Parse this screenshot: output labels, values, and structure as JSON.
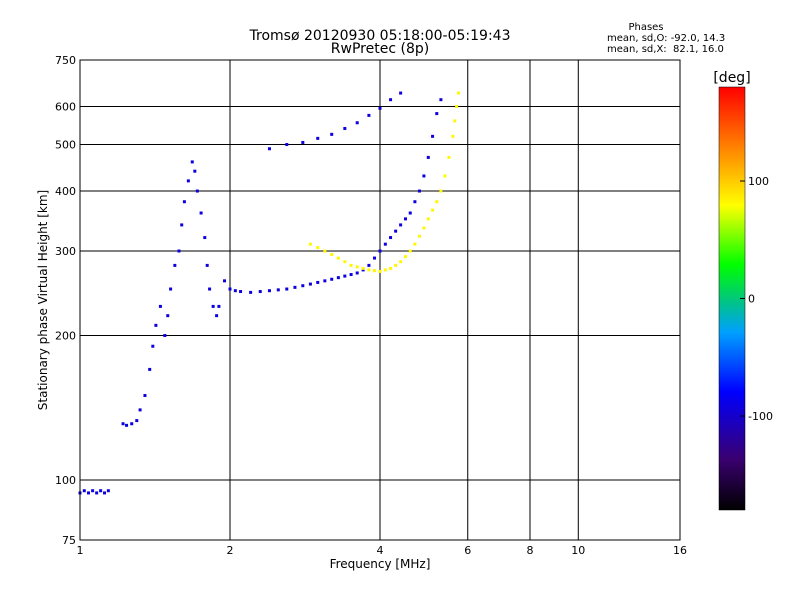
{
  "chart_data": {
    "type": "scatter",
    "title": "Tromsø 20120930 05:18:00-05:19:43",
    "subtitle": "RwPretec (8p)",
    "xlabel": "Frequency [MHz]",
    "ylabel": "Stationary phase Virtual Height [km]",
    "x_scale": "log",
    "y_scale": "log",
    "xlim": [
      1,
      16
    ],
    "ylim": [
      75,
      750
    ],
    "x_ticks": [
      1,
      2,
      4,
      6,
      8,
      10,
      16
    ],
    "x_tick_labels": [
      "1",
      "2",
      "4",
      "6",
      "8",
      "10",
      "16"
    ],
    "y_ticks": [
      75,
      100,
      200,
      300,
      400,
      500,
      600,
      750
    ],
    "y_tick_labels": [
      "75",
      "100",
      "200",
      "300",
      "400",
      "500",
      "600",
      "750"
    ],
    "grid": true,
    "phases_header": {
      "title": "Phases",
      "line1": "mean, sd,O: -92.0, 14.3",
      "line2": "mean, sd,X:  82.1, 16.0"
    },
    "colorbar": {
      "label": "[deg]",
      "range": [
        -180,
        180
      ],
      "ticks": [
        100,
        0,
        -100
      ],
      "tick_labels": [
        "100",
        "0",
        "-100"
      ]
    },
    "series": [
      {
        "trace": "O-mode",
        "color_phase_deg": -92,
        "points": [
          [
            1.0,
            94
          ],
          [
            1.02,
            95
          ],
          [
            1.04,
            94
          ],
          [
            1.06,
            95
          ],
          [
            1.08,
            94
          ],
          [
            1.1,
            95
          ],
          [
            1.12,
            94
          ],
          [
            1.14,
            95
          ],
          [
            1.22,
            131
          ],
          [
            1.24,
            130
          ],
          [
            1.27,
            131
          ],
          [
            1.3,
            133
          ],
          [
            1.32,
            140
          ],
          [
            1.35,
            150
          ],
          [
            1.38,
            170
          ],
          [
            1.4,
            190
          ],
          [
            1.42,
            210
          ],
          [
            1.45,
            230
          ],
          [
            1.48,
            200
          ],
          [
            1.5,
            220
          ],
          [
            1.52,
            250
          ],
          [
            1.55,
            280
          ],
          [
            1.58,
            300
          ],
          [
            1.6,
            340
          ],
          [
            1.62,
            380
          ],
          [
            1.65,
            420
          ],
          [
            1.68,
            460
          ],
          [
            1.7,
            440
          ],
          [
            1.72,
            400
          ],
          [
            1.75,
            360
          ],
          [
            1.78,
            320
          ],
          [
            1.8,
            280
          ],
          [
            1.82,
            250
          ],
          [
            1.85,
            230
          ],
          [
            1.88,
            220
          ],
          [
            1.9,
            230
          ],
          [
            1.95,
            260
          ],
          [
            2.0,
            250
          ],
          [
            2.05,
            248
          ],
          [
            2.1,
            247
          ],
          [
            2.2,
            246
          ],
          [
            2.3,
            247
          ],
          [
            2.4,
            248
          ],
          [
            2.5,
            249
          ],
          [
            2.6,
            250
          ],
          [
            2.7,
            252
          ],
          [
            2.8,
            254
          ],
          [
            2.9,
            256
          ],
          [
            3.0,
            258
          ],
          [
            3.1,
            260
          ],
          [
            3.2,
            262
          ],
          [
            3.3,
            264
          ],
          [
            3.4,
            266
          ],
          [
            3.5,
            268
          ],
          [
            3.6,
            270
          ],
          [
            3.7,
            274
          ],
          [
            3.8,
            280
          ],
          [
            3.9,
            290
          ],
          [
            4.0,
            300
          ],
          [
            4.1,
            310
          ],
          [
            4.2,
            320
          ],
          [
            4.3,
            330
          ],
          [
            4.4,
            340
          ],
          [
            4.5,
            350
          ],
          [
            4.6,
            360
          ],
          [
            4.7,
            380
          ],
          [
            4.8,
            400
          ],
          [
            4.9,
            430
          ],
          [
            5.0,
            470
          ],
          [
            5.1,
            520
          ],
          [
            5.2,
            580
          ],
          [
            5.3,
            620
          ],
          [
            2.4,
            490
          ],
          [
            2.6,
            500
          ],
          [
            2.8,
            505
          ],
          [
            3.0,
            515
          ],
          [
            3.2,
            525
          ],
          [
            3.4,
            540
          ],
          [
            3.6,
            555
          ],
          [
            3.8,
            575
          ],
          [
            4.0,
            595
          ],
          [
            4.2,
            620
          ],
          [
            4.4,
            640
          ]
        ]
      },
      {
        "trace": "X-mode",
        "color_phase_deg": 82,
        "points": [
          [
            2.9,
            310
          ],
          [
            3.0,
            305
          ],
          [
            3.1,
            300
          ],
          [
            3.2,
            295
          ],
          [
            3.3,
            290
          ],
          [
            3.4,
            285
          ],
          [
            3.5,
            280
          ],
          [
            3.6,
            278
          ],
          [
            3.7,
            276
          ],
          [
            3.8,
            274
          ],
          [
            3.9,
            273
          ],
          [
            4.0,
            272
          ],
          [
            4.1,
            274
          ],
          [
            4.2,
            276
          ],
          [
            4.3,
            280
          ],
          [
            4.4,
            285
          ],
          [
            4.5,
            292
          ],
          [
            4.6,
            300
          ],
          [
            4.7,
            310
          ],
          [
            4.8,
            322
          ],
          [
            4.9,
            335
          ],
          [
            5.0,
            350
          ],
          [
            5.1,
            365
          ],
          [
            5.2,
            380
          ],
          [
            5.3,
            400
          ],
          [
            5.4,
            430
          ],
          [
            5.5,
            470
          ],
          [
            5.6,
            520
          ],
          [
            5.65,
            560
          ],
          [
            5.7,
            600
          ],
          [
            5.75,
            640
          ]
        ]
      }
    ]
  }
}
